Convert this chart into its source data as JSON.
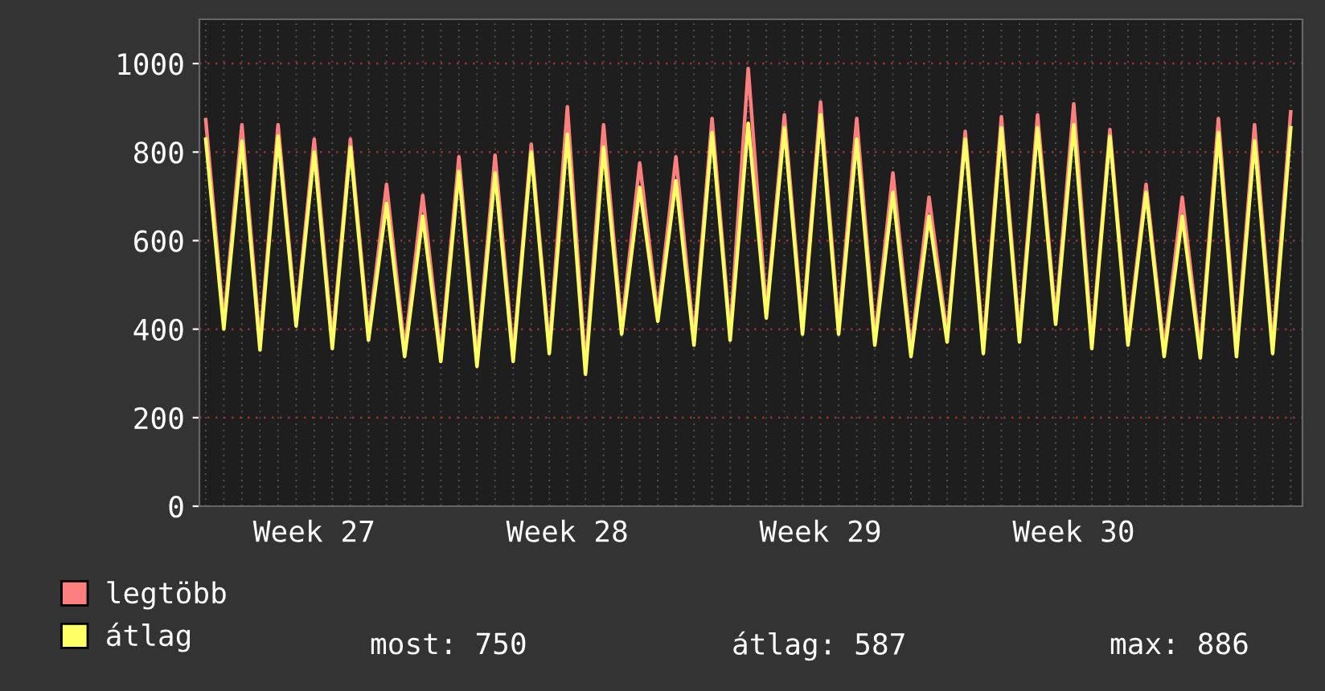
{
  "chart_data": {
    "type": "line",
    "categories": [
      null,
      null,
      null,
      null,
      null,
      null,
      "Week 27",
      null,
      null,
      null,
      null,
      null,
      null,
      null,
      null,
      null,
      null,
      null,
      null,
      null,
      "Week 28",
      null,
      null,
      null,
      null,
      null,
      null,
      null,
      null,
      null,
      null,
      null,
      null,
      null,
      "Week 29",
      null,
      null,
      null,
      null,
      null,
      null,
      null,
      null,
      null,
      null,
      null,
      null,
      null,
      "Week 30",
      null,
      null,
      null,
      null,
      null,
      null,
      null,
      null,
      null,
      null,
      null,
      null
    ],
    "series": [
      {
        "name": "legtöbb",
        "color": "#ff7f7f",
        "values": [
          873,
          415,
          862,
          370,
          862,
          420,
          829,
          372,
          829,
          390,
          727,
          355,
          702,
          342,
          789,
          330,
          793,
          342,
          818,
          360,
          902,
          315,
          862,
          405,
          775,
          432,
          789,
          380,
          876,
          390,
          989,
          440,
          884,
          405,
          913,
          405,
          876,
          380,
          753,
          355,
          698,
          386,
          847,
          360,
          880,
          386,
          884,
          425,
          909,
          372,
          851,
          380,
          727,
          355,
          698,
          350,
          876,
          355,
          862,
          360,
          891
        ]
      },
      {
        "name": "átlag",
        "color": "#ffff66",
        "values": [
          829,
          400,
          825,
          353,
          836,
          407,
          800,
          356,
          811,
          375,
          684,
          338,
          655,
          327,
          756,
          316,
          753,
          327,
          800,
          345,
          840,
          298,
          811,
          389,
          720,
          418,
          735,
          364,
          844,
          375,
          865,
          425,
          855,
          389,
          884,
          389,
          829,
          364,
          709,
          338,
          655,
          371,
          829,
          345,
          855,
          371,
          855,
          411,
          862,
          356,
          836,
          364,
          709,
          338,
          655,
          335,
          844,
          338,
          825,
          345,
          855
        ]
      }
    ],
    "ylim": [
      0,
      1100
    ],
    "yticks": [
      0,
      200,
      400,
      600,
      800,
      1000
    ],
    "grid": true,
    "legend": "bottom",
    "annotations": [
      "most: 750",
      "átlag: 587",
      "max: 886"
    ]
  }
}
